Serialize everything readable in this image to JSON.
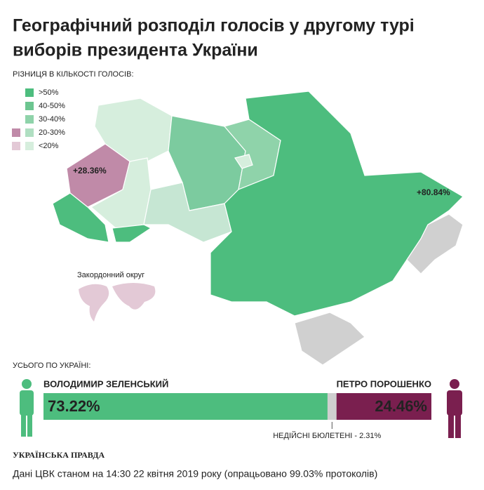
{
  "title": [
    "Географічний розподіл голосів у другому турі",
    "виборів президента України"
  ],
  "legend": {
    "heading": "РІЗНИЦЯ В КІЛЬКОСТІ ГОЛОСІВ:",
    "items": [
      ">50%",
      "40-50%",
      "30-40%",
      "20-30%",
      "<20%"
    ]
  },
  "map": {
    "labels": [
      "+28.36%",
      "+80.84%"
    ],
    "abroad": "Закордонний округ"
  },
  "total": {
    "heading": "УСЬОГО ПО УКРАЇНІ:",
    "parts": [
      {
        "name": "ВОЛОДИМИР ЗЕЛЕНСЬКИЙ",
        "value": 73.22,
        "label": "73.22%",
        "color": "#4dbd7e"
      },
      {
        "value": 2.31,
        "label": "НЕДІЙСНІ БЮЛЕТЕНІ - 2.31%",
        "color": "#cfcfcf"
      },
      {
        "name": "ПЕТРО ПОРОШЕНКО",
        "value": 24.46,
        "label": "24.46%",
        "color": "#7a1f4f"
      }
    ]
  },
  "footer": {
    "logo": "УКРАЇНСЬКА ПРАВДА",
    "source": "Дані ЦВК станом на 14:30 22 квітня 2019 року (опрацьовано 99.03% протоколів)"
  }
}
